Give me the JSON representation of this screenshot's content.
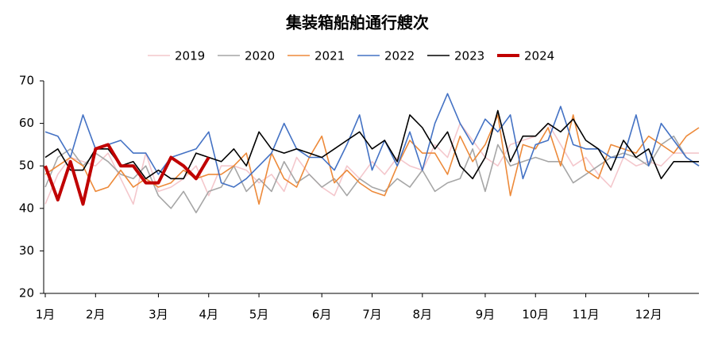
{
  "chart_data": {
    "type": "line",
    "title": "集装箱船舶通行艘次",
    "categories": [
      "1月",
      null,
      null,
      null,
      "2月",
      null,
      null,
      null,
      null,
      "3月",
      null,
      null,
      null,
      "4月",
      null,
      null,
      null,
      "5月",
      null,
      null,
      null,
      null,
      "6月",
      null,
      null,
      null,
      "7月",
      null,
      null,
      null,
      "8月",
      null,
      null,
      null,
      null,
      "9月",
      null,
      null,
      null,
      "10月",
      null,
      null,
      null,
      "11月",
      null,
      null,
      null,
      null,
      "12月",
      null,
      null,
      null,
      null
    ],
    "series": [
      {
        "name": "2019",
        "color": "#f4c7cc",
        "width": 1.6,
        "values": [
          41,
          48,
          52,
          51,
          50,
          53,
          47,
          41,
          53,
          44,
          45,
          47,
          50,
          43,
          50,
          50,
          49,
          46,
          48,
          44,
          52,
          48,
          45,
          43,
          50,
          47,
          51,
          48,
          52,
          50,
          49,
          55,
          52,
          60,
          56,
          52,
          50,
          55,
          56,
          57,
          60,
          55,
          50,
          52,
          48,
          45,
          52,
          50,
          51,
          50,
          53,
          53,
          53
        ]
      },
      {
        "name": "2020",
        "color": "#a6a6a6",
        "width": 1.6,
        "values": [
          45,
          52,
          54,
          50,
          53,
          51,
          48,
          47,
          50,
          43,
          40,
          44,
          39,
          44,
          45,
          50,
          44,
          47,
          44,
          51,
          46,
          48,
          45,
          47,
          43,
          47,
          45,
          44,
          47,
          45,
          49,
          44,
          46,
          47,
          54,
          44,
          55,
          50,
          51,
          52,
          51,
          51,
          46,
          48,
          50,
          52,
          53,
          52,
          50,
          55,
          57,
          52,
          50
        ]
      },
      {
        "name": "2021",
        "color": "#ed8a3a",
        "width": 1.6,
        "values": [
          48,
          50,
          52,
          50,
          44,
          45,
          49,
          45,
          47,
          45,
          46,
          49,
          47,
          48,
          48,
          50,
          53,
          41,
          53,
          47,
          45,
          52,
          57,
          46,
          49,
          46,
          44,
          43,
          50,
          56,
          53,
          53,
          48,
          57,
          51,
          55,
          62,
          43,
          55,
          54,
          59,
          50,
          62,
          49,
          47,
          55,
          54,
          53,
          57,
          55,
          53,
          57,
          59
        ]
      },
      {
        "name": "2022",
        "color": "#4472c4",
        "width": 1.6,
        "values": [
          58,
          57,
          52,
          62,
          54,
          55,
          56,
          53,
          53,
          48,
          52,
          53,
          54,
          58,
          46,
          45,
          47,
          50,
          53,
          60,
          54,
          52,
          52,
          49,
          55,
          62,
          49,
          56,
          50,
          58,
          49,
          60,
          67,
          60,
          55,
          61,
          58,
          62,
          47,
          55,
          56,
          64,
          55,
          54,
          54,
          52,
          52,
          62,
          50,
          60,
          56,
          52,
          50
        ]
      },
      {
        "name": "2023",
        "color": "#000000",
        "width": 1.6,
        "values": [
          52,
          54,
          49,
          49,
          54,
          54,
          50,
          51,
          47,
          49,
          47,
          47,
          53,
          52,
          51,
          54,
          50,
          58,
          54,
          53,
          54,
          53,
          52,
          54,
          56,
          58,
          54,
          56,
          51,
          62,
          59,
          54,
          58,
          50,
          47,
          52,
          63,
          51,
          57,
          57,
          60,
          58,
          61,
          56,
          54,
          49,
          56,
          52,
          54,
          47,
          51,
          51,
          51
        ]
      },
      {
        "name": "2024",
        "color": "#c00000",
        "width": 4,
        "values": [
          50,
          42,
          51,
          41,
          54,
          55,
          50,
          50,
          46,
          46,
          52,
          50,
          47,
          52,
          null,
          null,
          null,
          null,
          null,
          null,
          null,
          null,
          null,
          null,
          null,
          null,
          null,
          null,
          null,
          null,
          null,
          null,
          null,
          null,
          null,
          null,
          null,
          null,
          null,
          null,
          null,
          null,
          null,
          null,
          null,
          null,
          null,
          null,
          null,
          null,
          null,
          null,
          null
        ]
      }
    ],
    "ylim": [
      20,
      70
    ],
    "yticks": [
      20,
      30,
      40,
      50,
      60,
      70
    ],
    "grid": false
  }
}
